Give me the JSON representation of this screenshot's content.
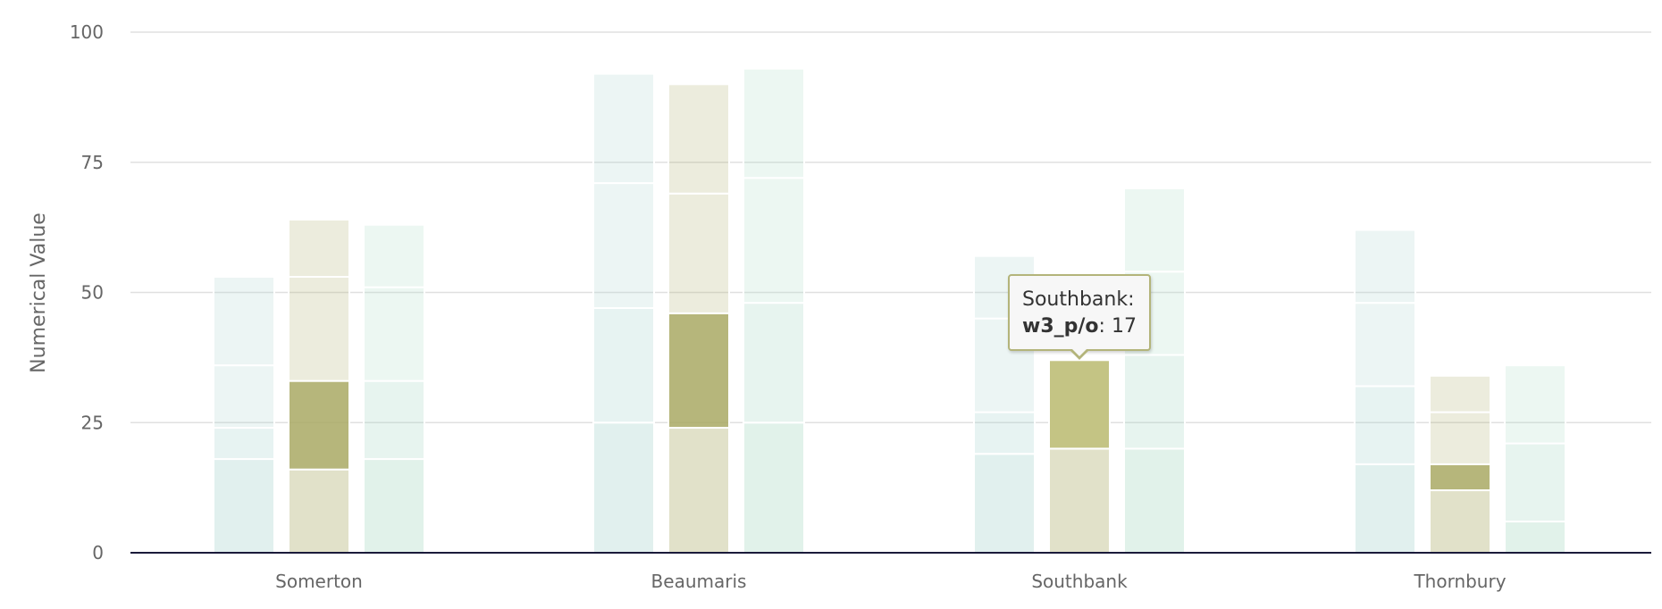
{
  "chart_data": {
    "type": "bar",
    "stacked": true,
    "title": "",
    "xlabel": "",
    "ylabel": "Numerical Value",
    "ylim": [
      0,
      100
    ],
    "yticks": [
      0,
      25,
      50,
      75,
      100
    ],
    "grid": true,
    "categories": [
      "Somerton",
      "Beaumaris",
      "Southbank",
      "Thornbury"
    ],
    "stacks": [
      {
        "name": "stack-1",
        "base_color": "#a9d3cf",
        "segments": [
          {
            "values": [
              18,
              25,
              19,
              17
            ]
          },
          {
            "values": [
              6,
              22,
              8,
              15
            ]
          },
          {
            "values": [
              12,
              24,
              18,
              16
            ]
          },
          {
            "values": [
              17,
              21,
              12,
              14
            ]
          }
        ]
      },
      {
        "name": "stack-2",
        "base_color": "#a9a964",
        "segments": [
          {
            "values": [
              16,
              24,
              20,
              12
            ]
          },
          {
            "name": "w3_p/o",
            "values": [
              17,
              22,
              17,
              5
            ]
          },
          {
            "values": [
              20,
              23,
              0,
              10
            ]
          },
          {
            "values": [
              11,
              21,
              0,
              7
            ]
          }
        ]
      },
      {
        "name": "stack-3",
        "base_color": "#a9d9c4",
        "segments": [
          {
            "values": [
              18,
              25,
              20,
              6
            ]
          },
          {
            "values": [
              15,
              23,
              18,
              15
            ]
          },
          {
            "values": [
              18,
              24,
              16,
              15
            ]
          },
          {
            "values": [
              12,
              21,
              16,
              0
            ]
          }
        ]
      }
    ],
    "highlight": {
      "category": "Southbank",
      "stack": 1,
      "segment": 1
    }
  },
  "tooltip": {
    "category": "Southbank",
    "category_suffix": ":",
    "series": "w3_p/o",
    "separator": ":",
    "value": "17"
  }
}
